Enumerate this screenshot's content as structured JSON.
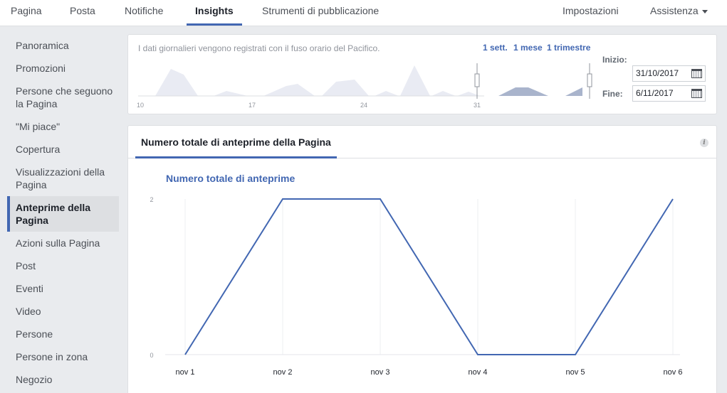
{
  "nav": {
    "tabs": [
      {
        "label": "Pagina",
        "active": false
      },
      {
        "label": "Posta",
        "active": false
      },
      {
        "label": "Notifiche",
        "active": false
      },
      {
        "label": "Insights",
        "active": true
      },
      {
        "label": "Strumenti di pubblicazione",
        "active": false
      }
    ],
    "settings_label": "Impostazioni",
    "help_label": "Assistenza"
  },
  "sidebar": {
    "items": [
      {
        "label": "Panoramica",
        "active": false
      },
      {
        "label": "Promozioni",
        "active": false
      },
      {
        "label": "Persone che seguono la Pagina",
        "active": false
      },
      {
        "label": "\"Mi piace\"",
        "active": false
      },
      {
        "label": "Copertura",
        "active": false
      },
      {
        "label": "Visualizzazioni della Pagina",
        "active": false
      },
      {
        "label": "Anteprime della Pagina",
        "active": true
      },
      {
        "label": "Azioni sulla Pagina",
        "active": false
      },
      {
        "label": "Post",
        "active": false
      },
      {
        "label": "Eventi",
        "active": false
      },
      {
        "label": "Video",
        "active": false
      },
      {
        "label": "Persone",
        "active": false
      },
      {
        "label": "Persone in zona",
        "active": false
      },
      {
        "label": "Negozio",
        "active": false
      }
    ]
  },
  "range": {
    "note": "I dati giornalieri vengono registrati con il fuso orario del Pacifico.",
    "presets": [
      "1 sett.",
      "1 mese",
      "1 trimestre"
    ],
    "start_label": "Inizio:",
    "start_value": "31/10/2017",
    "end_label": "Fine:",
    "end_value": "6/11/2017",
    "timeline_ticks": [
      "10",
      "17",
      "24",
      "31"
    ]
  },
  "chart_panel": {
    "tab_label": "Numero totale di anteprime della Pagina",
    "info_icon": "i"
  },
  "colors": {
    "accent": "#4267b2",
    "line": "#4267b2",
    "mini_area": "#e9ebf3",
    "mini_selected": "#a9b4cc"
  },
  "chart_data": {
    "type": "line",
    "series": [
      {
        "name": "Numero totale di anteprime",
        "values": [
          0,
          2,
          2,
          0,
          0,
          2
        ]
      }
    ],
    "categories": [
      "nov 1",
      "nov 2",
      "nov 3",
      "nov 4",
      "nov 5",
      "nov 6"
    ],
    "y_ticks": [
      0,
      2
    ],
    "ylim": [
      0,
      2
    ],
    "grid": "vertical"
  }
}
